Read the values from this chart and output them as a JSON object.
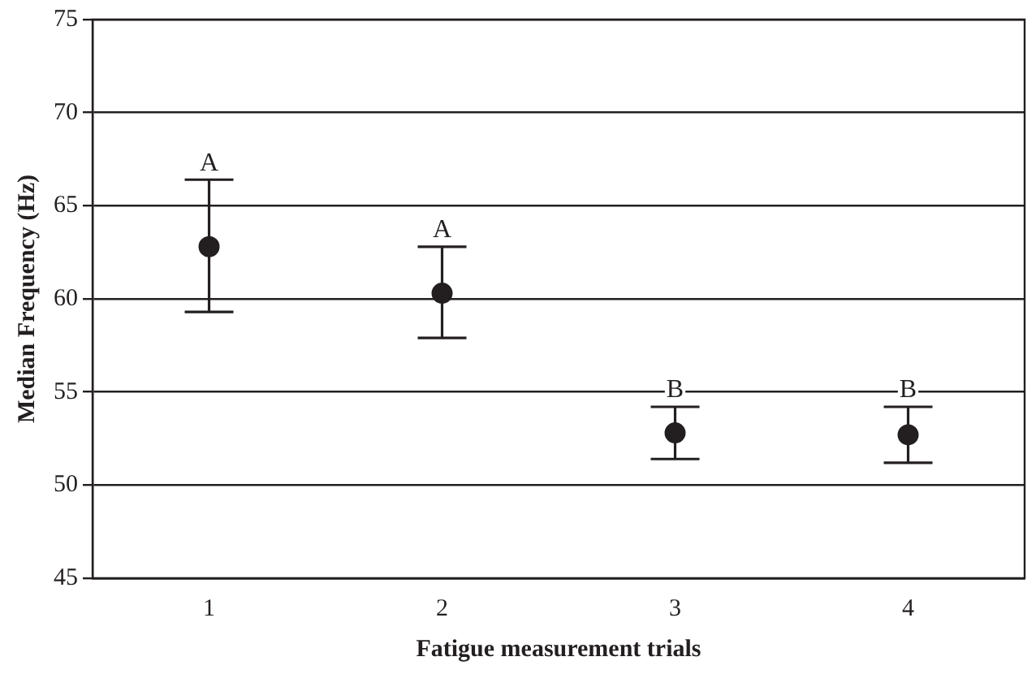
{
  "chart_data": {
    "type": "scatter",
    "xlabel": "Fatigue measurement trials",
    "ylabel": "Median Frequency (Hz)",
    "categories": [
      "1",
      "2",
      "3",
      "4"
    ],
    "series": [
      {
        "color": "#231f20",
        "values": [
          62.8,
          60.3,
          52.8,
          52.7
        ],
        "errors": [
          [
            59.3,
            66.4
          ],
          [
            57.9,
            62.8
          ],
          [
            51.4,
            54.2
          ],
          [
            51.2,
            54.2
          ]
        ]
      }
    ],
    "ylim": [
      45,
      75
    ],
    "yticks": [
      45,
      50,
      55,
      60,
      65,
      70,
      75
    ],
    "grid": "y",
    "legend": false,
    "marker": "circle",
    "annotations": [
      {
        "text": "A",
        "x": "1",
        "y": 66.4
      },
      {
        "text": "A",
        "x": "2",
        "y": 62.8
      },
      {
        "text": "B",
        "x": "3",
        "y": 54.2
      },
      {
        "text": "B",
        "x": "4",
        "y": 54.2
      }
    ]
  }
}
